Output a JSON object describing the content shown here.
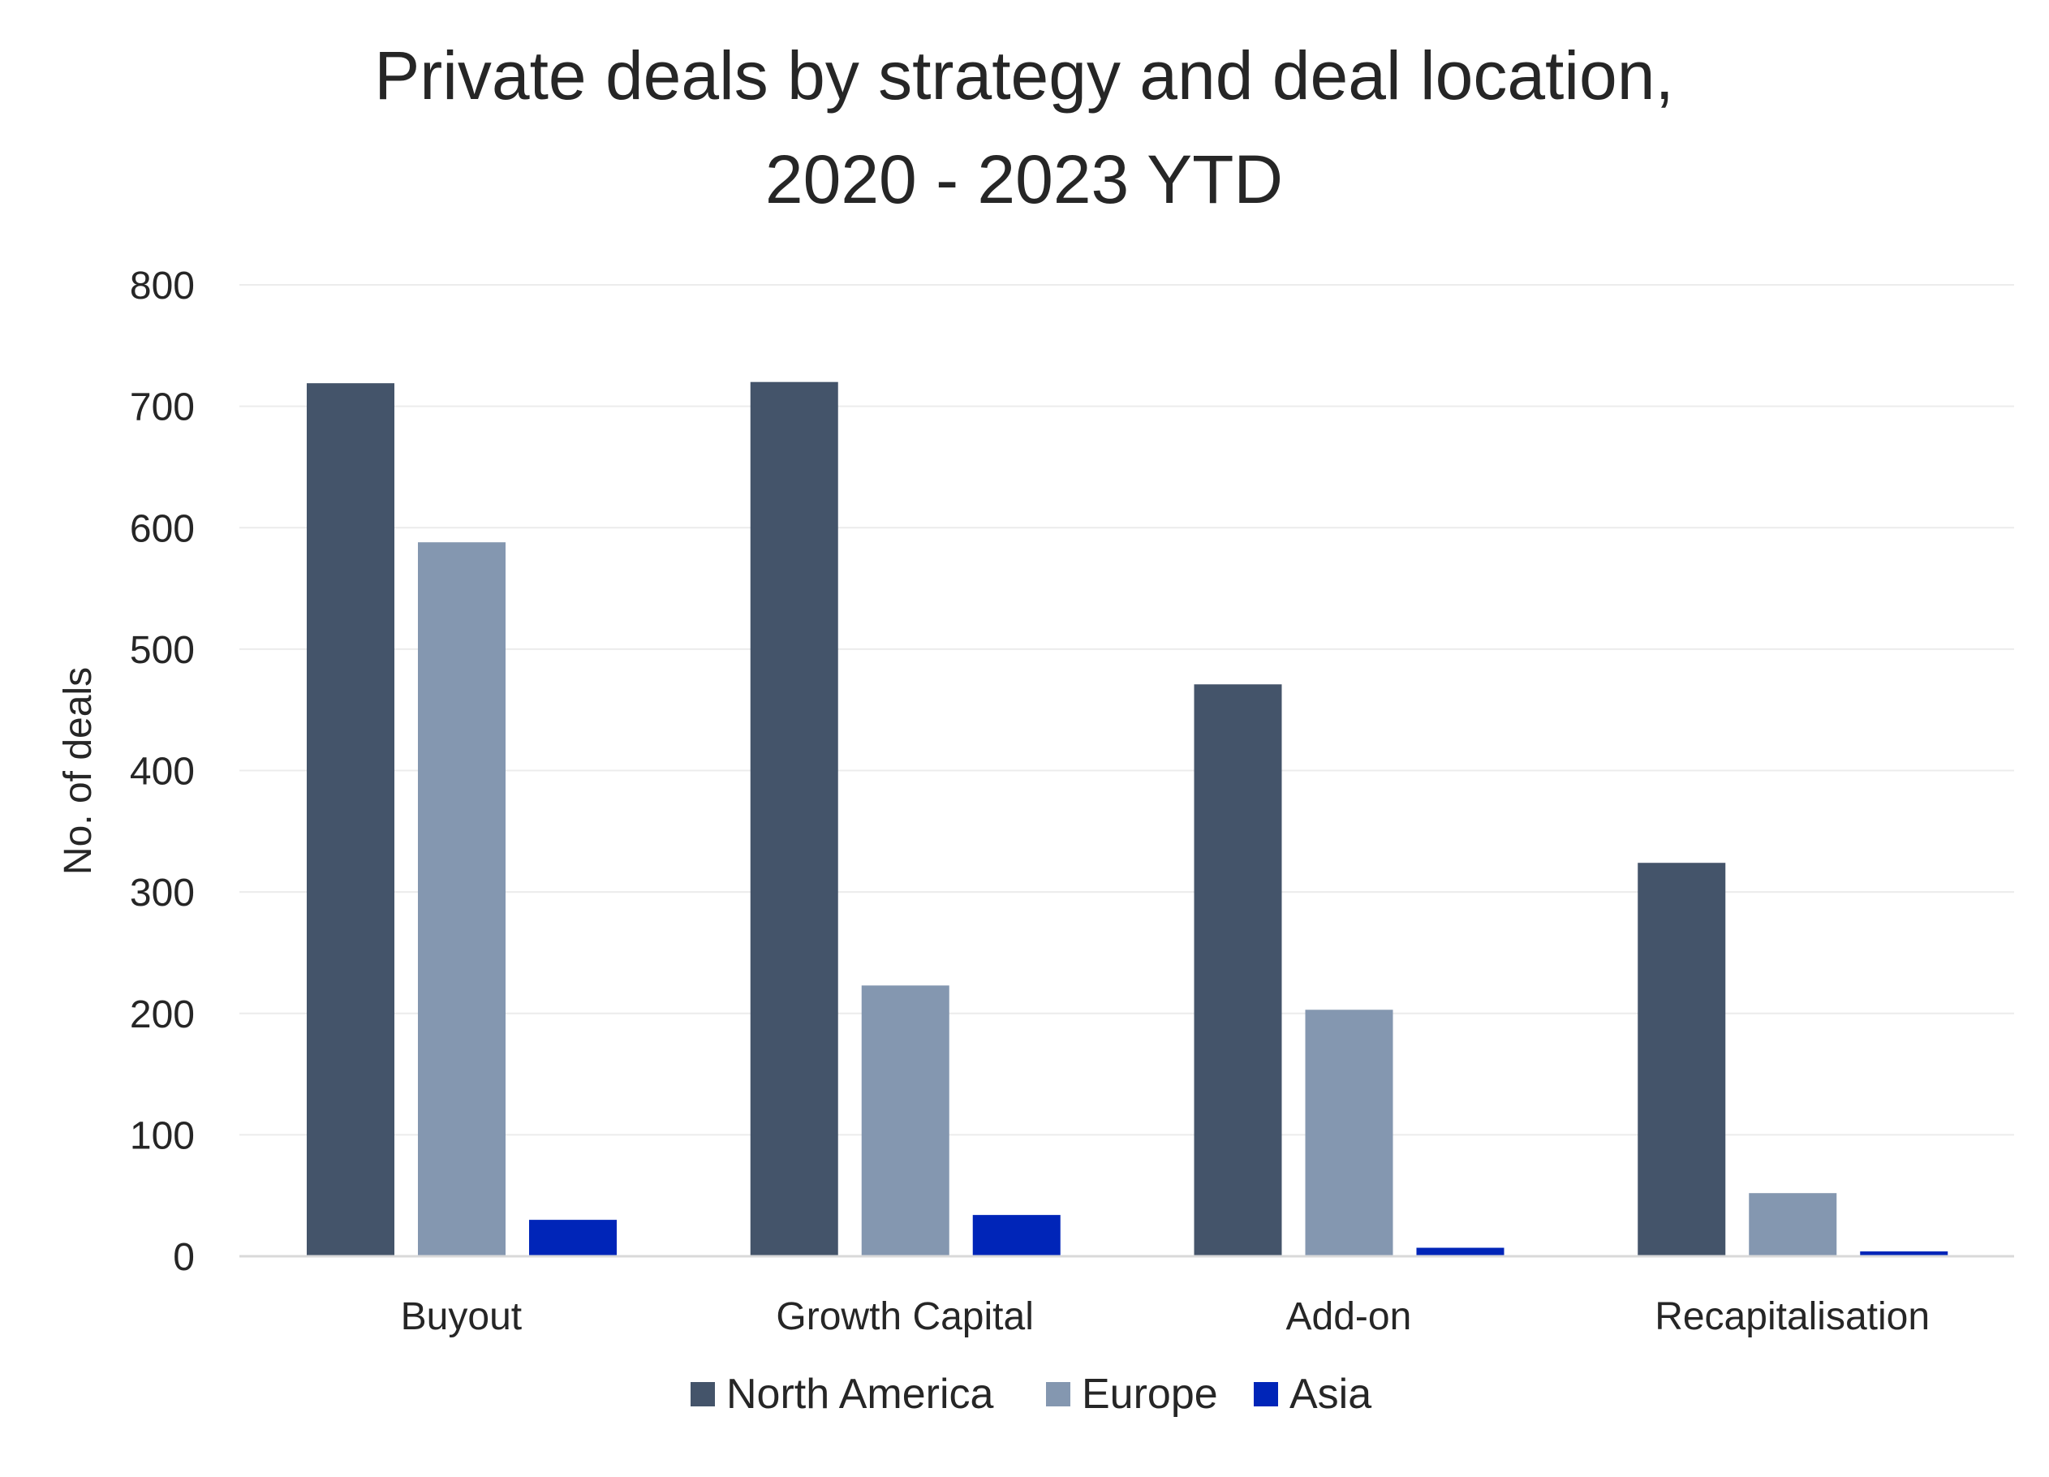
{
  "chart_data": {
    "type": "bar",
    "title": "Private deals by strategy and deal location,",
    "subtitle": "2020 - 2023 YTD",
    "xlabel": "",
    "ylabel": "No. of deals",
    "ylim": [
      0,
      800
    ],
    "yticks": [
      "0",
      "100",
      "200",
      "300",
      "400",
      "500",
      "600",
      "700",
      "800"
    ],
    "categories": [
      "Buyout",
      "Growth Capital",
      "Add-on",
      "Recapitalisation"
    ],
    "series": [
      {
        "name": "North America",
        "color": "#44546a",
        "values": [
          719,
          720,
          471,
          324
        ]
      },
      {
        "name": "Europe",
        "color": "#8497b0",
        "values": [
          588,
          223,
          203,
          52
        ]
      },
      {
        "name": "Asia",
        "color": "#0025b8",
        "values": [
          30,
          34,
          7,
          4
        ]
      }
    ],
    "grid": true,
    "legend": "bottom"
  }
}
